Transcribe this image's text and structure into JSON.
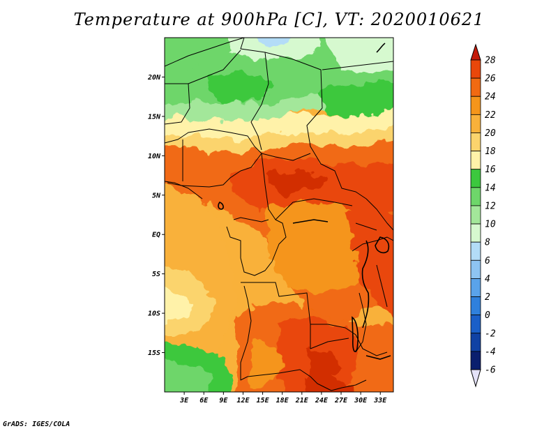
{
  "title": "Temperature at 900hPa [C], VT: 2020010621",
  "footer": "GrADS: IGES/COLA",
  "map": {
    "lon_range": [
      0,
      35
    ],
    "lat_range": [
      -20,
      25
    ],
    "lat_ticks": [
      {
        "value": 20,
        "label": "20N"
      },
      {
        "value": 15,
        "label": "15N"
      },
      {
        "value": 10,
        "label": "10N"
      },
      {
        "value": 5,
        "label": "5N"
      },
      {
        "value": 0,
        "label": "EQ"
      },
      {
        "value": -5,
        "label": "5S"
      },
      {
        "value": -10,
        "label": "10S"
      },
      {
        "value": -15,
        "label": "15S"
      }
    ],
    "lon_ticks": [
      {
        "value": 3,
        "label": "3E"
      },
      {
        "value": 6,
        "label": "6E"
      },
      {
        "value": 9,
        "label": "9E"
      },
      {
        "value": 12,
        "label": "12E"
      },
      {
        "value": 15,
        "label": "15E"
      },
      {
        "value": 18,
        "label": "18E"
      },
      {
        "value": 21,
        "label": "21E"
      },
      {
        "value": 24,
        "label": "24E"
      },
      {
        "value": 27,
        "label": "27E"
      },
      {
        "value": 30,
        "label": "30E"
      },
      {
        "value": 33,
        "label": "33E"
      }
    ]
  },
  "colorbar": {
    "levels": [
      {
        "label": "28",
        "color": "#d22f00"
      },
      {
        "label": "26",
        "color": "#e9470a"
      },
      {
        "label": "24",
        "color": "#f16a12"
      },
      {
        "label": "22",
        "color": "#f5951a"
      },
      {
        "label": "20",
        "color": "#f9b13a"
      },
      {
        "label": "18",
        "color": "#fbd46d"
      },
      {
        "label": "16",
        "color": "#fff2a9"
      },
      {
        "label": "14",
        "color": "#3cc83e"
      },
      {
        "label": "12",
        "color": "#6ed66a"
      },
      {
        "label": "10",
        "color": "#a3e79a"
      },
      {
        "label": "8",
        "color": "#d6f9cf"
      },
      {
        "label": "6",
        "color": "#b3dcf7"
      },
      {
        "label": "4",
        "color": "#8ec4f2"
      },
      {
        "label": "2",
        "color": "#5aa3ea"
      },
      {
        "label": "0",
        "color": "#2f80dc"
      },
      {
        "label": "-2",
        "color": "#1a5fc8"
      },
      {
        "label": "-4",
        "color": "#1042a4"
      },
      {
        "label": "-6",
        "color": "#0a1f6e"
      }
    ],
    "top_arrow_color": "#c41a0a",
    "bottom_arrow_color": "#e4e2f8"
  }
}
